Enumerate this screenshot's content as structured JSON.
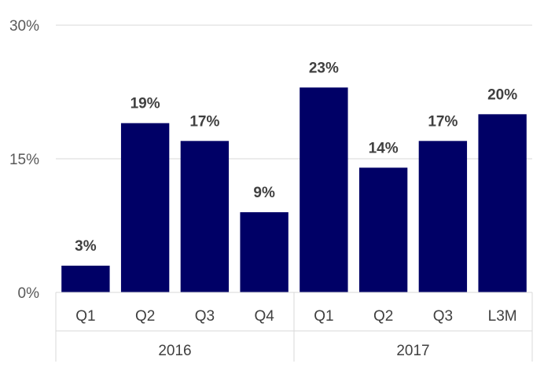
{
  "chart_data": {
    "type": "bar",
    "categories": [
      "Q1",
      "Q2",
      "Q3",
      "Q4",
      "Q1",
      "Q2",
      "Q3",
      "L3M"
    ],
    "values": [
      3,
      19,
      17,
      9,
      23,
      14,
      17,
      20
    ],
    "data_labels": [
      "3%",
      "19%",
      "17%",
      "9%",
      "23%",
      "14%",
      "17%",
      "20%"
    ],
    "groups": [
      {
        "label": "2016",
        "count": 4
      },
      {
        "label": "2017",
        "count": 4
      }
    ],
    "y_ticks": [
      {
        "value": 0,
        "label": "0%"
      },
      {
        "value": 15,
        "label": "15%"
      },
      {
        "value": 30,
        "label": "30%"
      }
    ],
    "ylim": [
      0,
      30
    ],
    "grid": true,
    "bar_color": "#000066",
    "title": "",
    "xlabel": "",
    "ylabel": ""
  }
}
